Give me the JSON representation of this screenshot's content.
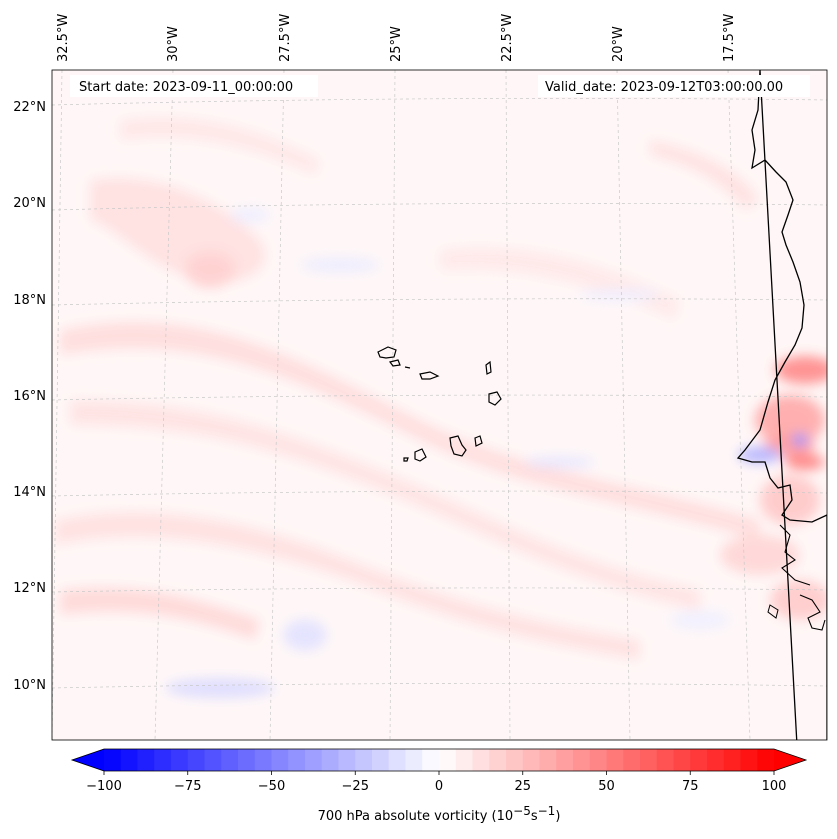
{
  "map": {
    "start_date_label": "Start date: 2023-09-11_00:00:00",
    "valid_date_label": "Valid_date: 2023-09-12T03:00:00.00",
    "lon_labels": [
      "32.5°W",
      "30°W",
      "27.5°W",
      "25°W",
      "22.5°W",
      "20°W",
      "17.5°W"
    ],
    "lat_labels": [
      "22°N",
      "20°N",
      "18°N",
      "16°N",
      "14°N",
      "12°N",
      "10°N"
    ],
    "field": "700 hPa absolute vorticity"
  },
  "colorbar": {
    "label_main": "700 hPa absolute vorticity (10",
    "label_exp1": "−5",
    "label_mid": "s",
    "label_exp2": "−1",
    "label_end": ")",
    "min": -100,
    "max": 100,
    "ticks": [
      "−100",
      "−75",
      "−50",
      "−25",
      "0",
      "25",
      "50",
      "75",
      "100"
    ],
    "negative_color": "#0000ff",
    "positive_color": "#ff0000"
  }
}
